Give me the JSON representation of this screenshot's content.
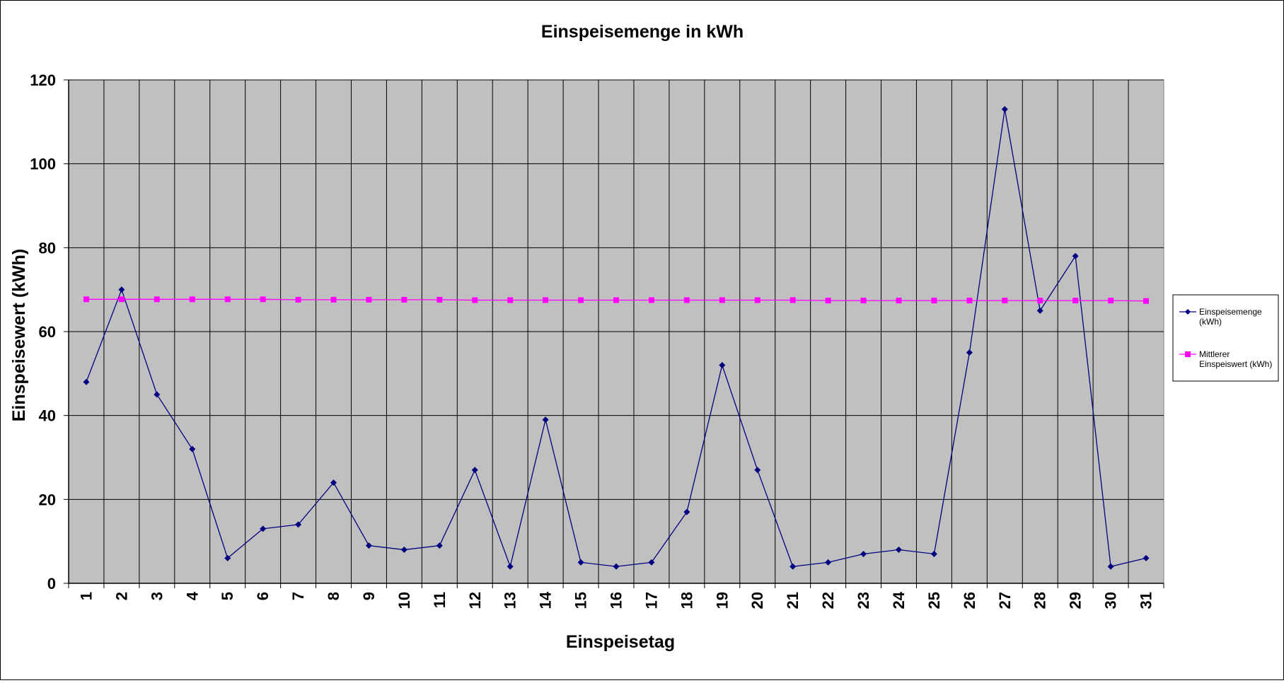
{
  "chart_data": {
    "type": "line",
    "title": "Einspeisemenge in kWh",
    "xlabel": "Einspeisetag",
    "ylabel": "Einspeisewert  (kWh)",
    "ylim": [
      0,
      120
    ],
    "yticks": [
      0,
      20,
      40,
      60,
      80,
      100,
      120
    ],
    "grid": true,
    "legend_position": "right",
    "plot_background": "#c0c0c0",
    "categories": [
      "1",
      "2",
      "3",
      "4",
      "5",
      "6",
      "7",
      "8",
      "9",
      "10",
      "11",
      "12",
      "13",
      "14",
      "15",
      "16",
      "17",
      "18",
      "19",
      "20",
      "21",
      "22",
      "23",
      "24",
      "25",
      "26",
      "27",
      "28",
      "29",
      "30",
      "31"
    ],
    "series": [
      {
        "name": "Einspeisemenge (kWh)",
        "legend_lines": [
          "Einspeisemenge",
          "(kWh)"
        ],
        "color": "#000080",
        "marker": "diamond",
        "values": [
          48,
          70,
          45,
          32,
          6,
          13,
          14,
          24,
          9,
          8,
          9,
          27,
          4,
          39,
          5,
          4,
          5,
          17,
          52,
          27,
          4,
          5,
          7,
          8,
          7,
          55,
          113,
          65,
          78,
          4,
          6
        ]
      },
      {
        "name": "Mittlerer Einspeiswert (kWh)",
        "legend_lines": [
          "Mittlerer",
          "Einspeiswert (kWh)"
        ],
        "color": "#ff00ff",
        "marker": "square",
        "values": [
          67.7,
          67.7,
          67.7,
          67.7,
          67.7,
          67.7,
          67.6,
          67.6,
          67.6,
          67.6,
          67.6,
          67.5,
          67.5,
          67.5,
          67.5,
          67.5,
          67.5,
          67.5,
          67.5,
          67.5,
          67.5,
          67.4,
          67.4,
          67.4,
          67.4,
          67.4,
          67.4,
          67.4,
          67.4,
          67.4,
          67.3
        ]
      }
    ]
  }
}
